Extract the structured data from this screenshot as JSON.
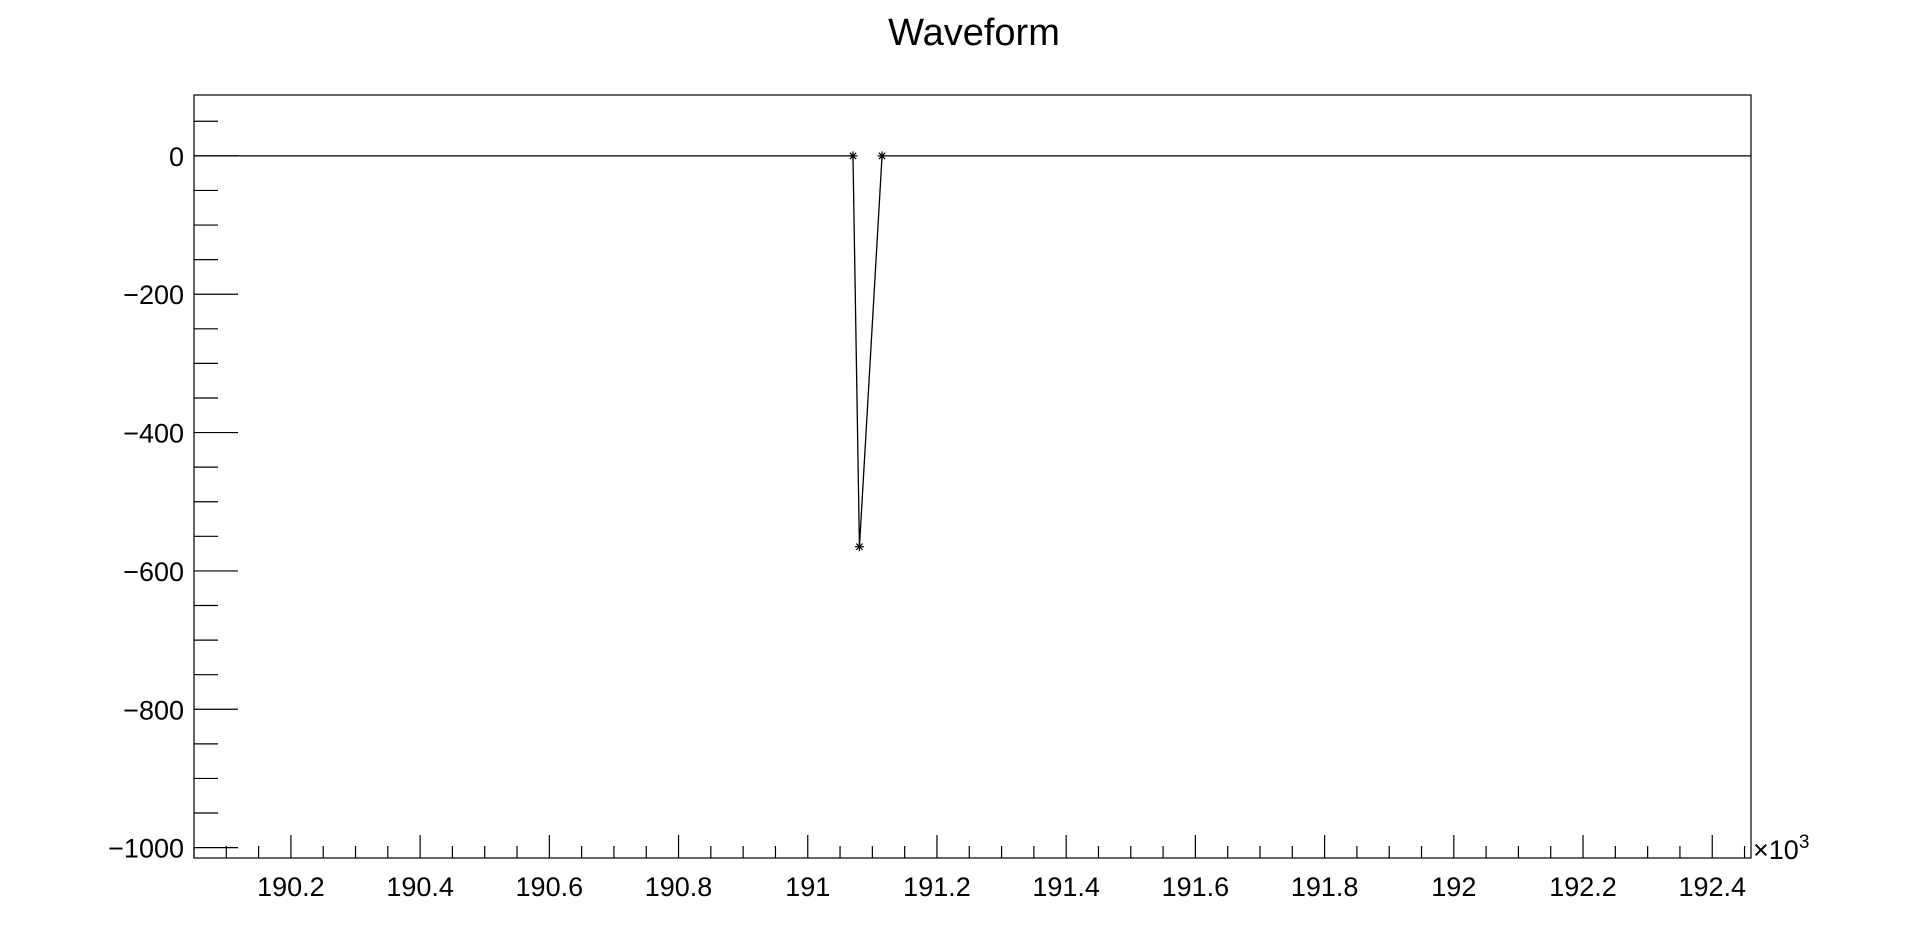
{
  "chart_data": {
    "type": "line",
    "title": "Waveform",
    "xlabel": "",
    "ylabel": "",
    "x_multiplier_label": "×10",
    "x_multiplier_exponent": "3",
    "xlim": [
      190.05,
      192.46
    ],
    "ylim": [
      -1015,
      88
    ],
    "x_ticks": [
      190.2,
      190.4,
      190.6,
      190.8,
      191,
      191.2,
      191.4,
      191.6,
      191.8,
      192,
      192.2,
      192.4
    ],
    "x_tick_labels": [
      "190.2",
      "190.4",
      "190.6",
      "190.8",
      "191",
      "191.2",
      "191.4",
      "191.6",
      "191.8",
      "192",
      "192.2",
      "192.4"
    ],
    "y_ticks": [
      0,
      -200,
      -400,
      -600,
      -800,
      -1000
    ],
    "y_tick_labels": [
      "0",
      "−200",
      "−400",
      "−600",
      "−800",
      "−1000"
    ],
    "grid": false,
    "series": [
      {
        "color": "#000000",
        "marker": "asterisk",
        "line_x": [
          190.05,
          191.07,
          191.08,
          191.115,
          192.46
        ],
        "line_y": [
          0,
          0,
          -565,
          0,
          0
        ],
        "marker_x": [
          191.07,
          191.08,
          191.115
        ],
        "marker_y": [
          0,
          -565,
          0
        ]
      }
    ]
  }
}
